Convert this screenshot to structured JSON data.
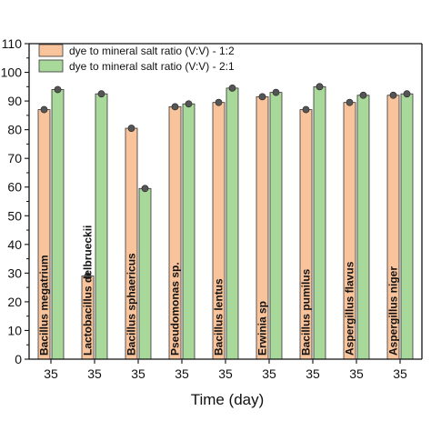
{
  "chart_data": {
    "type": "bar",
    "xlabel": "Time (day)",
    "ylabel": "",
    "ylim": [
      0,
      110
    ],
    "yticks": [
      0,
      10,
      20,
      30,
      40,
      50,
      60,
      70,
      80,
      90,
      100,
      110
    ],
    "categories": [
      "Bacillus megatrium",
      "Lactobacillus delbrueckii",
      "Bacillus sphaericus",
      "Pseudomonas sp.",
      "Bacillus lentus",
      "Erwinia sp",
      "Bacillus pumilus",
      "Aspergillus flavus",
      "Aspergillus niger"
    ],
    "x_tick_labels": [
      "35",
      "35",
      "35",
      "35",
      "35",
      "35",
      "35",
      "35",
      "35"
    ],
    "series": [
      {
        "name": "dye to mineral salt ratio (V:V) - 1:2",
        "color": "#F9C49B",
        "values": [
          87,
          29,
          80.5,
          88,
          89.5,
          91.5,
          87,
          89.5,
          92
        ]
      },
      {
        "name": "dye to mineral salt ratio (V:V) - 2:1",
        "color": "#A9D99A",
        "values": [
          94,
          92.5,
          59.5,
          89,
          94.5,
          93,
          95,
          92,
          92.5
        ]
      }
    ],
    "legend_position": "top-left",
    "grid": false
  }
}
